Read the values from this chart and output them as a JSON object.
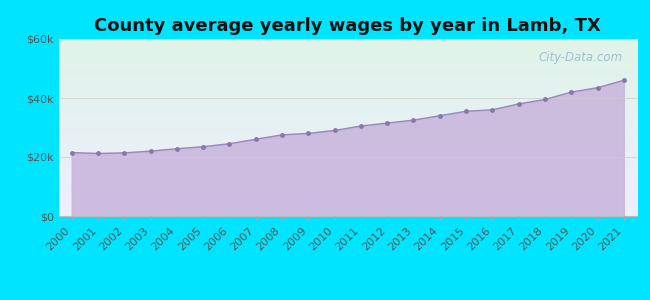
{
  "title": "County average yearly wages by year in Lamb, TX",
  "years": [
    2000,
    2001,
    2002,
    2003,
    2004,
    2005,
    2006,
    2007,
    2008,
    2009,
    2010,
    2011,
    2012,
    2013,
    2014,
    2015,
    2016,
    2017,
    2018,
    2019,
    2020,
    2021
  ],
  "wages": [
    21500,
    21200,
    21400,
    22000,
    22800,
    23500,
    24500,
    26000,
    27500,
    28000,
    29000,
    30500,
    31500,
    32500,
    34000,
    35500,
    36000,
    38000,
    39500,
    42000,
    43500,
    46000
  ],
  "ylim": [
    0,
    60000
  ],
  "yticks": [
    0,
    20000,
    40000,
    60000
  ],
  "ytick_labels": [
    "$0",
    "$20k",
    "$40k",
    "$60k"
  ],
  "fill_color": "#c8b4dc",
  "fill_alpha": 0.85,
  "line_color": "#9988bb",
  "marker_color": "#8877aa",
  "marker_size": 3.5,
  "bg_outer": "#00e5ff",
  "watermark_text": "City-Data.com",
  "watermark_color": "#99bbcc",
  "title_fontsize": 13,
  "tick_fontsize": 8,
  "title_color": "#111111"
}
